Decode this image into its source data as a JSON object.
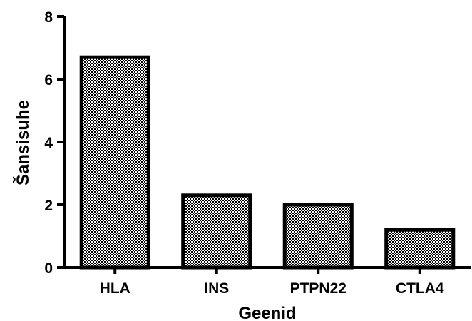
{
  "chart_data": {
    "type": "bar",
    "categories": [
      "HLA",
      "INS",
      "PTPN22",
      "CTLA4"
    ],
    "values": [
      6.7,
      2.3,
      2.0,
      1.2
    ],
    "xlabel": "Geenid",
    "ylabel": "Šansisuhe",
    "ylim": [
      0,
      8
    ],
    "yticks": [
      0,
      2,
      4,
      6,
      8
    ],
    "grid": false,
    "legend": "none",
    "bar_fill": "checkerboard",
    "colors": {
      "bar_stroke": "#000000",
      "pattern_dark": "#000000",
      "pattern_light": "#ffffff"
    }
  }
}
